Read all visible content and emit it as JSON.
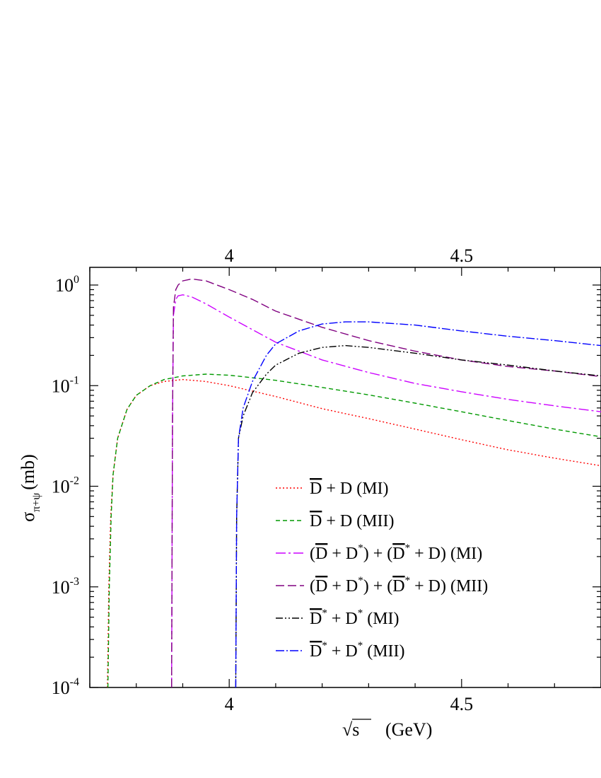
{
  "chart_data": {
    "type": "line",
    "xlim": [
      3.7,
      4.8
    ],
    "ylim": [
      0.0001,
      1.5
    ],
    "yscale": "log",
    "grid": false,
    "legend_position": "bottom-right",
    "xlabel": {
      "main": "√s",
      "unit": "(GeV)"
    },
    "ylabel": {
      "symbol": "σ",
      "subscript": "π+ψ",
      "unit": "(mb)"
    },
    "x_ticks": [
      {
        "value": 4.0,
        "label": "4"
      },
      {
        "value": 4.5,
        "label": "4.5"
      }
    ],
    "y_ticks": [
      {
        "value": 1,
        "base": "10",
        "exp": "0"
      },
      {
        "value": 0.1,
        "base": "10",
        "exp": "-1"
      },
      {
        "value": 0.01,
        "base": "10",
        "exp": "-2"
      },
      {
        "value": 0.001,
        "base": "10",
        "exp": "-3"
      },
      {
        "value": 0.0001,
        "base": "10",
        "exp": "-4"
      }
    ],
    "series": [
      {
        "name": "D̄ + D (MI)",
        "label_parts": [
          {
            "t": "D",
            "bar": true
          },
          {
            "t": " + D (MI)"
          }
        ],
        "color": "#ff0000",
        "dash": "2,3",
        "x": [
          3.738,
          3.741,
          3.745,
          3.75,
          3.76,
          3.78,
          3.8,
          3.83,
          3.86,
          3.9,
          3.95,
          4.0,
          4.1,
          4.2,
          4.3,
          4.4,
          4.5,
          4.6,
          4.7,
          4.8
        ],
        "y": [
          0.0001,
          0.001,
          0.005,
          0.013,
          0.03,
          0.058,
          0.08,
          0.1,
          0.11,
          0.115,
          0.11,
          0.1,
          0.078,
          0.059,
          0.047,
          0.037,
          0.029,
          0.023,
          0.019,
          0.016
        ]
      },
      {
        "name": "D̄ + D (MII)",
        "label_parts": [
          {
            "t": "D",
            "bar": true
          },
          {
            "t": " + D (MII)"
          }
        ],
        "color": "#009900",
        "dash": "6,4",
        "x": [
          3.739,
          3.742,
          3.746,
          3.75,
          3.76,
          3.78,
          3.8,
          3.83,
          3.86,
          3.9,
          3.95,
          4.0,
          4.1,
          4.2,
          4.3,
          4.4,
          4.5,
          4.6,
          4.7,
          4.8
        ],
        "y": [
          0.0001,
          0.001,
          0.005,
          0.013,
          0.03,
          0.058,
          0.08,
          0.1,
          0.115,
          0.125,
          0.13,
          0.127,
          0.113,
          0.096,
          0.081,
          0.067,
          0.055,
          0.045,
          0.037,
          0.031
        ]
      },
      {
        "name": "(D̄ + D*) + (D̄* + D) (MI)",
        "label_parts": [
          {
            "t": "("
          },
          {
            "t": "D",
            "bar": true
          },
          {
            "t": " + D"
          },
          {
            "sup": "*"
          },
          {
            "t": ") + ("
          },
          {
            "t": "D",
            "bar": true
          },
          {
            "sup": "*"
          },
          {
            "t": " + D) (MI)"
          }
        ],
        "color": "#cc00ff",
        "dash": "14,4,3,4",
        "x": [
          3.876,
          3.878,
          3.88,
          3.885,
          3.89,
          3.9,
          3.92,
          3.95,
          4.0,
          4.05,
          4.1,
          4.2,
          4.3,
          4.4,
          4.5,
          4.6,
          4.7,
          4.8
        ],
        "y": [
          0.0001,
          0.05,
          0.5,
          0.72,
          0.78,
          0.8,
          0.76,
          0.65,
          0.48,
          0.36,
          0.27,
          0.18,
          0.135,
          0.105,
          0.087,
          0.073,
          0.063,
          0.055
        ]
      },
      {
        "name": "(D̄ + D*) + (D̄* + D) (MII)",
        "label_parts": [
          {
            "t": "("
          },
          {
            "t": "D",
            "bar": true
          },
          {
            "t": " + D"
          },
          {
            "sup": "*"
          },
          {
            "t": ") + ("
          },
          {
            "t": "D",
            "bar": true
          },
          {
            "sup": "*"
          },
          {
            "t": " + D) (MII)"
          }
        ],
        "color": "#800080",
        "dash": "12,5",
        "x": [
          3.876,
          3.878,
          3.88,
          3.885,
          3.89,
          3.9,
          3.92,
          3.95,
          4.0,
          4.05,
          4.1,
          4.2,
          4.3,
          4.4,
          4.5,
          4.6,
          4.7,
          4.8
        ],
        "y": [
          0.0001,
          0.05,
          0.6,
          0.9,
          1.0,
          1.1,
          1.15,
          1.1,
          0.9,
          0.72,
          0.55,
          0.38,
          0.28,
          0.22,
          0.18,
          0.155,
          0.14,
          0.123
        ]
      },
      {
        "name": "D̄* + D* (MI)",
        "label_parts": [
          {
            "t": "D",
            "bar": true
          },
          {
            "sup": "*"
          },
          {
            "t": " + D"
          },
          {
            "sup": "*"
          },
          {
            "t": " (MI)"
          }
        ],
        "color": "#000000",
        "dash": "10,3,2,3,2,3",
        "x": [
          4.014,
          4.016,
          4.02,
          4.03,
          4.05,
          4.08,
          4.1,
          4.15,
          4.2,
          4.25,
          4.3,
          4.4,
          4.5,
          4.6,
          4.7,
          4.8
        ],
        "y": [
          0.0001,
          0.005,
          0.03,
          0.05,
          0.085,
          0.13,
          0.16,
          0.21,
          0.24,
          0.25,
          0.24,
          0.21,
          0.18,
          0.16,
          0.14,
          0.125
        ]
      },
      {
        "name": "D̄* + D* (MII)",
        "label_parts": [
          {
            "t": "D",
            "bar": true
          },
          {
            "sup": "*"
          },
          {
            "t": " + D"
          },
          {
            "sup": "*"
          },
          {
            "t": " (MII)"
          }
        ],
        "color": "#0000ff",
        "dash": "12,3,2,3",
        "x": [
          4.014,
          4.016,
          4.02,
          4.03,
          4.05,
          4.08,
          4.1,
          4.15,
          4.2,
          4.25,
          4.3,
          4.4,
          4.5,
          4.6,
          4.7,
          4.8
        ],
        "y": [
          0.0001,
          0.005,
          0.03,
          0.06,
          0.11,
          0.2,
          0.26,
          0.35,
          0.41,
          0.43,
          0.43,
          0.4,
          0.35,
          0.31,
          0.28,
          0.25
        ]
      }
    ]
  }
}
